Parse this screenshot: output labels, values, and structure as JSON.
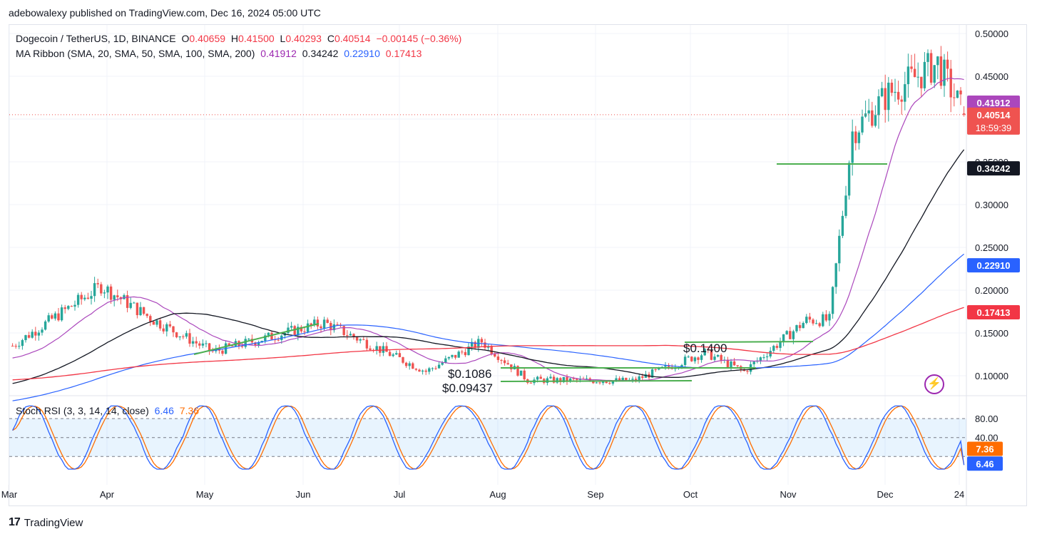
{
  "header": {
    "publisher": "adebowalexy published on TradingView.com, Dec 16, 2024 05:00 UTC"
  },
  "legend": {
    "symbol": "Dogecoin / TetherUS, 1D, BINANCE",
    "open_label": "O",
    "open": "0.40659",
    "high_label": "H",
    "high": "0.41500",
    "low_label": "L",
    "low": "0.40293",
    "close_label": "C",
    "close": "0.40514",
    "change": "−0.00145 (−0.36%)",
    "ma_title": "MA Ribbon (SMA, 20, SMA, 50, SMA, 100, SMA, 200)",
    "ma_values": [
      "0.41912",
      "0.34242",
      "0.22910",
      "0.17413"
    ]
  },
  "rsi_legend": {
    "title": "Stoch RSI (3, 3, 14, 14, close)",
    "k": "6.46",
    "d": "7.36"
  },
  "footer": {
    "brand": "TradingView",
    "logo": "17"
  },
  "colors": {
    "up": "#26a69a",
    "down": "#ef5350",
    "ma20": "#ab47bc",
    "ma50": "#131722",
    "ma100": "#2962ff",
    "ma200": "#f23645",
    "rsi_k": "#2962ff",
    "rsi_d": "#ff6d00",
    "support": "#4caf50"
  },
  "chart_data": [
    {
      "type": "candlestick",
      "title": "Dogecoin / TetherUS, 1D, BINANCE",
      "x_ticks": [
        "Mar",
        "Apr",
        "May",
        "Jun",
        "Jul",
        "Aug",
        "Sep",
        "Oct",
        "Nov",
        "Dec",
        "24"
      ],
      "y_ticks": [
        "0.50000",
        "0.45000",
        "0.40000",
        "0.35000",
        "0.30000",
        "0.25000",
        "0.20000",
        "0.15000",
        "0.10000"
      ],
      "ylim": [
        0.075,
        0.51
      ],
      "price_labels": [
        {
          "name": "MA20",
          "value": "0.41912",
          "color": "#ab47bc"
        },
        {
          "name": "Last",
          "value": "0.40514",
          "sub": "18:59:39",
          "color": "#ef5350"
        },
        {
          "name": "MA50",
          "value": "0.34242",
          "color": "#131722"
        },
        {
          "name": "MA100",
          "value": "0.22910",
          "color": "#2962ff"
        },
        {
          "name": "MA200",
          "value": "0.17413",
          "color": "#f23645"
        }
      ],
      "annotations": [
        "$0.1400",
        "$0.1086",
        "$0.09437"
      ],
      "key_points": [
        {
          "date": "2024-03-01",
          "close": 0.135
        },
        {
          "date": "2024-03-28",
          "close": 0.205
        },
        {
          "date": "2024-04-13",
          "close": 0.165
        },
        {
          "date": "2024-05-01",
          "close": 0.128
        },
        {
          "date": "2024-06-04",
          "close": 0.162
        },
        {
          "date": "2024-07-05",
          "close": 0.105
        },
        {
          "date": "2024-07-22",
          "close": 0.14
        },
        {
          "date": "2024-08-05",
          "close": 0.095
        },
        {
          "date": "2024-09-06",
          "close": 0.094
        },
        {
          "date": "2024-09-28",
          "close": 0.127
        },
        {
          "date": "2024-10-10",
          "close": 0.105
        },
        {
          "date": "2024-10-29",
          "close": 0.165
        },
        {
          "date": "2024-11-05",
          "close": 0.165
        },
        {
          "date": "2024-11-12",
          "close": 0.385
        },
        {
          "date": "2024-11-23",
          "close": 0.43
        },
        {
          "date": "2024-12-08",
          "close": 0.465
        },
        {
          "date": "2024-12-16",
          "close": 0.40514
        }
      ]
    },
    {
      "type": "line",
      "title": "Stoch RSI (3, 3, 14, 14, close)",
      "y_ticks": [
        "80.00",
        "40.00"
      ],
      "ylim": [
        0,
        100
      ],
      "band": [
        20,
        80
      ],
      "series": [
        {
          "name": "K",
          "last": 6.46
        },
        {
          "name": "D",
          "last": 7.36
        }
      ]
    }
  ]
}
